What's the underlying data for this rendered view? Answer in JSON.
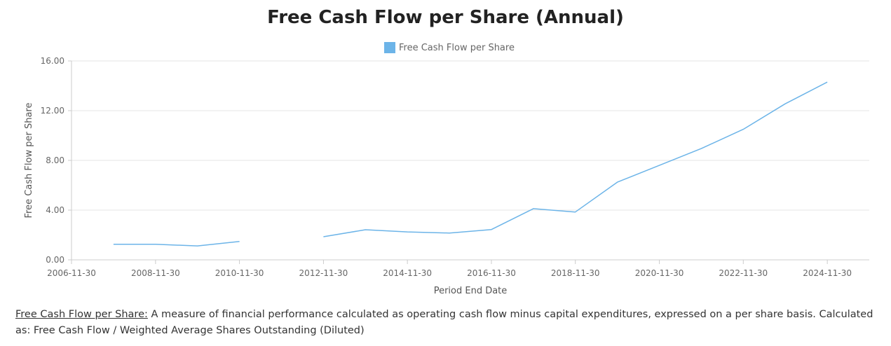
{
  "chart_data": {
    "type": "line",
    "title": "Free Cash Flow per Share (Annual)",
    "xlabel": "Period End Date",
    "ylabel": "Free Cash Flow per Share",
    "legend": "top-center",
    "grid": true,
    "x_ticks": [
      "2006-11-30",
      "2008-11-30",
      "2010-11-30",
      "2012-11-30",
      "2014-11-30",
      "2016-11-30",
      "2018-11-30",
      "2020-11-30",
      "2022-11-30",
      "2024-11-30"
    ],
    "y_ticks": [
      "0.00",
      "4.00",
      "8.00",
      "12.00",
      "16.00"
    ],
    "xlim": [
      "2006-11-30",
      "2025-11-30"
    ],
    "ylim": [
      0,
      16
    ],
    "series": [
      {
        "name": "Free Cash Flow per Share",
        "color": "#6cb4e8",
        "points": [
          {
            "x": "2007-11-30",
            "y": 1.25
          },
          {
            "x": "2008-11-30",
            "y": 1.25
          },
          {
            "x": "2009-11-30",
            "y": 1.12
          },
          {
            "x": "2010-11-30",
            "y": 1.48
          },
          {
            "x": "2011-11-30",
            "y": null
          },
          {
            "x": "2012-11-30",
            "y": 1.86
          },
          {
            "x": "2013-11-30",
            "y": 2.42
          },
          {
            "x": "2014-11-30",
            "y": 2.25
          },
          {
            "x": "2015-11-30",
            "y": 2.16
          },
          {
            "x": "2016-11-30",
            "y": 2.44
          },
          {
            "x": "2017-11-30",
            "y": 4.12
          },
          {
            "x": "2018-11-30",
            "y": 3.85
          },
          {
            "x": "2019-11-30",
            "y": 6.25
          },
          {
            "x": "2020-11-30",
            "y": 7.6
          },
          {
            "x": "2021-11-30",
            "y": 8.95
          },
          {
            "x": "2022-11-30",
            "y": 10.5
          },
          {
            "x": "2023-11-30",
            "y": 12.55
          },
          {
            "x": "2024-11-30",
            "y": 14.3
          }
        ]
      }
    ]
  },
  "description": {
    "term": "Free Cash Flow per Share:",
    "text": " A measure of financial performance calculated as operating cash flow minus capital expenditures, expressed on a per share basis. Calculated as: Free Cash Flow / Weighted Average Shares Outstanding (Diluted)"
  }
}
